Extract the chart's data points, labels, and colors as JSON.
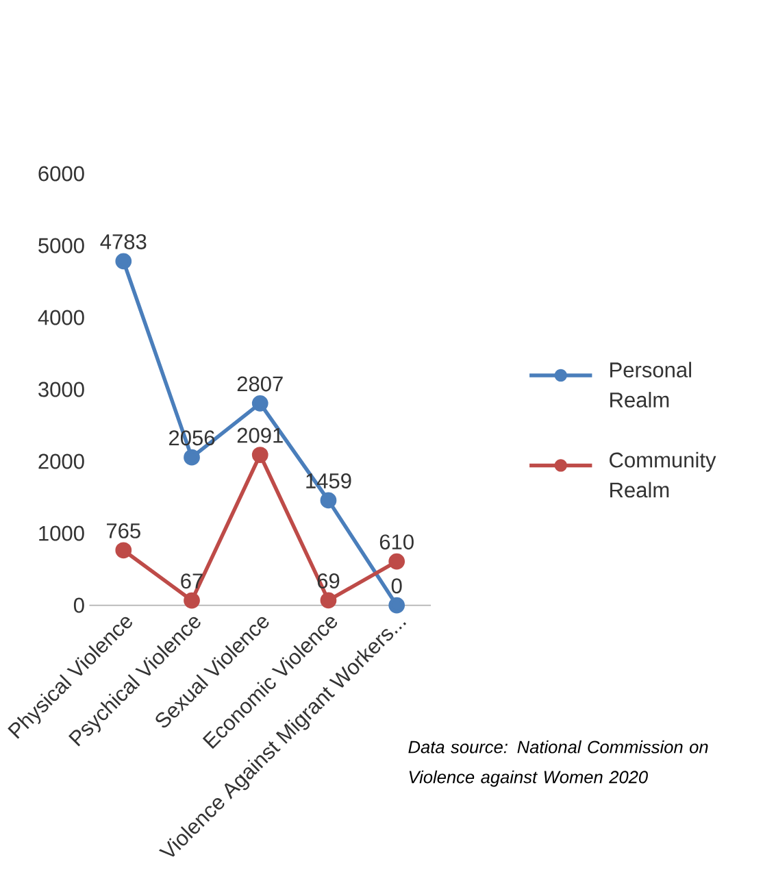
{
  "chart_data": {
    "type": "line",
    "categories": [
      "Physical Violence",
      "Psychical Violence",
      "Sexual Violence",
      "Economic Violence",
      "Violence Against Migrant Workers..."
    ],
    "series": [
      {
        "name": "Personal Realm",
        "color": "#4a7ebb",
        "values": [
          4783,
          2056,
          2807,
          1459,
          0
        ]
      },
      {
        "name": "Community Realm",
        "color": "#be4b48",
        "values": [
          765,
          67,
          2091,
          69,
          610
        ]
      }
    ],
    "ylim": [
      0,
      6000
    ],
    "yticks": [
      0,
      1000,
      2000,
      3000,
      4000,
      5000,
      6000
    ],
    "grid": false,
    "legend": "right",
    "marker": "circle",
    "line_style": "solid",
    "data_labels": true,
    "annotations": [
      "Data source: National Commission on Violence against Women 2020"
    ]
  }
}
